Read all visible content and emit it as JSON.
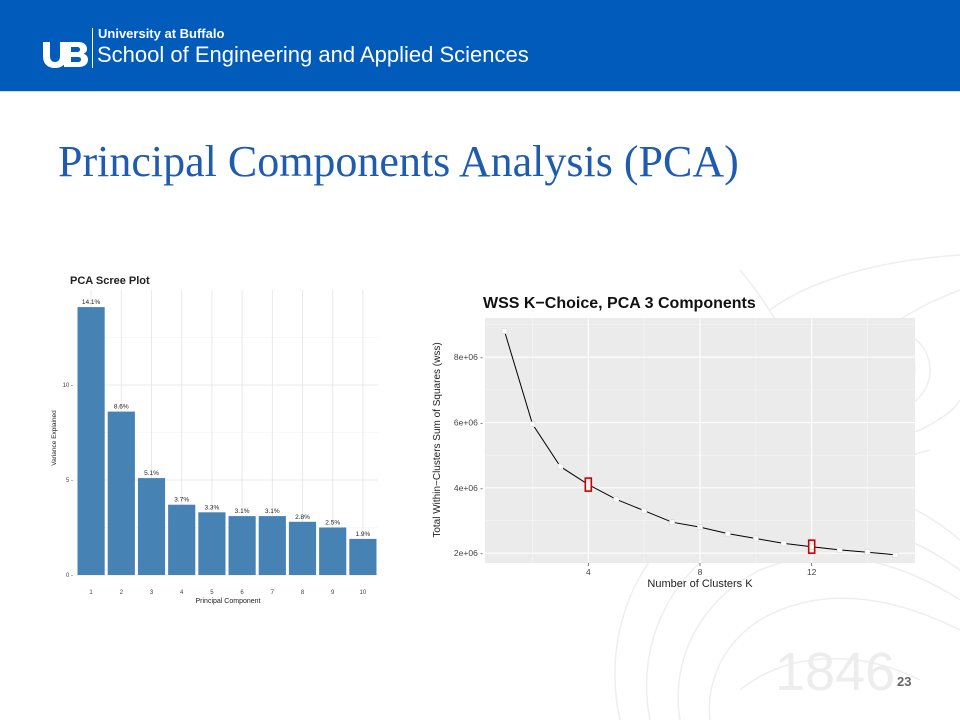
{
  "header": {
    "university": "University at Buffalo",
    "school": "School of Engineering and Applied Sciences"
  },
  "slide": {
    "title": "Principal Components Analysis (PCA)",
    "page_number": "23",
    "watermark_year": "1846"
  },
  "colors": {
    "banner": "#005bbb",
    "title": "#1f5cb0",
    "bars": "#4682b4",
    "panel": "#ebebeb",
    "highlight": "#cc0000"
  },
  "chart_data": [
    {
      "type": "bar",
      "title": "PCA Scree Plot",
      "xlabel": "Principal Component",
      "ylabel": "Variance Explained",
      "categories": [
        "1",
        "2",
        "3",
        "4",
        "5",
        "6",
        "7",
        "8",
        "9",
        "10"
      ],
      "values": [
        14.1,
        8.6,
        5.1,
        3.7,
        3.3,
        3.1,
        3.1,
        2.8,
        2.5,
        1.9
      ],
      "labels": [
        "14.1%",
        "8.6%",
        "5.1%",
        "3.7%",
        "3.3%",
        "3.1%",
        "3.1%",
        "2.8%",
        "2.5%",
        "1.9%"
      ],
      "ylim": [
        0,
        15
      ],
      "yticks": [
        0,
        5,
        10
      ],
      "ytick_labels": [
        "0 -",
        "5 -",
        "10 -"
      ],
      "grid": true
    },
    {
      "type": "line",
      "title": "WSS K−Choice, PCA 3 Components",
      "xlabel": "Number of Clusters K",
      "ylabel": "Total Within−Clusters Sum of Squares (wss)",
      "x": [
        1,
        2,
        3,
        4,
        5,
        6,
        7,
        8,
        9,
        10,
        11,
        12,
        13,
        14,
        15
      ],
      "y": [
        8800000,
        5950000,
        4650000,
        4100000,
        3650000,
        3300000,
        2950000,
        2800000,
        2600000,
        2450000,
        2300000,
        2200000,
        2100000,
        2030000,
        1950000
      ],
      "highlighted_x": [
        4,
        12
      ],
      "xlim": [
        0.3,
        15.7
      ],
      "ylim": [
        1700000,
        9200000
      ],
      "xticks": [
        4,
        8,
        12
      ],
      "xtick_labels": [
        "4",
        "8",
        "12"
      ],
      "yticks": [
        2000000,
        4000000,
        6000000,
        8000000
      ],
      "ytick_labels": [
        "2e+06 -",
        "4e+06 -",
        "6e+06 -",
        "8e+06 -"
      ],
      "grid": true
    }
  ]
}
